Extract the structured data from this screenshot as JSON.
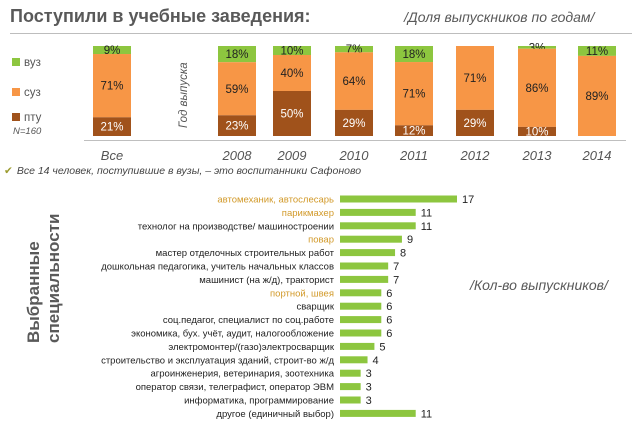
{
  "header": {
    "title": "Поступили в учебные заведения:",
    "subtitle": "/Доля выпускников по годам/"
  },
  "note": {
    "text": "Все 14 человек, поступившие в вузы, – это воспитанники Сафоново"
  },
  "specialties": {
    "title_line1": "Выбранные",
    "title_line2": "специальности",
    "subtitle": "/Кол-во выпускников/"
  },
  "colors": {
    "vuz": "#8dc63f",
    "suz": "#f79646",
    "ptu": "#a0521b",
    "bar": "#8dc63f",
    "highlight": "#d29a2a"
  },
  "chart_data": [
    {
      "type": "bar",
      "stacked": true,
      "categories": [
        "Все",
        "2008",
        "2009",
        "2010",
        "2011",
        "2012",
        "2013",
        "2014"
      ],
      "series": [
        {
          "name": "вуз",
          "values": [
            9,
            18,
            10,
            7,
            18,
            0,
            3,
            11
          ]
        },
        {
          "name": "суз",
          "values": [
            71,
            59,
            40,
            64,
            71,
            71,
            86,
            89
          ]
        },
        {
          "name": "пту",
          "values": [
            21,
            23,
            50,
            29,
            12,
            29,
            10,
            0
          ]
        }
      ],
      "data_labels": {
        "вуз": [
          "9%",
          "18%",
          "10%",
          "7%",
          "18%",
          "",
          "3%",
          "11%"
        ],
        "суз": [
          "71%",
          "59%",
          "40%",
          "64%",
          "71%",
          "71%",
          "86%",
          "89%"
        ],
        "пту": [
          "21%",
          "23%",
          "50%",
          "29%",
          "12%",
          "29%",
          "10%",
          ""
        ]
      },
      "legend_annotation": "N=160",
      "axis_annotation": "Год выпуска",
      "ylim": [
        0,
        100
      ],
      "legend_position": "left"
    },
    {
      "type": "bar",
      "orientation": "horizontal",
      "categories": [
        "автомеханик, автослесарь",
        "парикмахер",
        "технолог на производстве/ машиностроении",
        "повар",
        "мастер отделочных строительных работ",
        "дошкольная педагогика, учитель начальных классов",
        "машинист (на ж/д), тракторист",
        "портной, швея",
        "сварщик",
        "соц.педагог, специалист по соц.работе",
        "экономика, бух. учёт, аудит, налогообложение",
        "электромонтер/(газо)электросварщик",
        "строительство и эксплуатация зданий, строит-во ж/д",
        "агроинженерия, ветеринария, зоотехника",
        "оператор связи, телеграфист, оператор ЭВМ",
        "информатика, программирование",
        "другое (единичный выбор)"
      ],
      "values": [
        17,
        11,
        11,
        9,
        8,
        7,
        7,
        6,
        6,
        6,
        6,
        5,
        4,
        3,
        3,
        3,
        11
      ],
      "highlighted": [
        true,
        true,
        false,
        true,
        false,
        false,
        false,
        true,
        false,
        false,
        false,
        false,
        false,
        false,
        false,
        false,
        false
      ]
    }
  ]
}
